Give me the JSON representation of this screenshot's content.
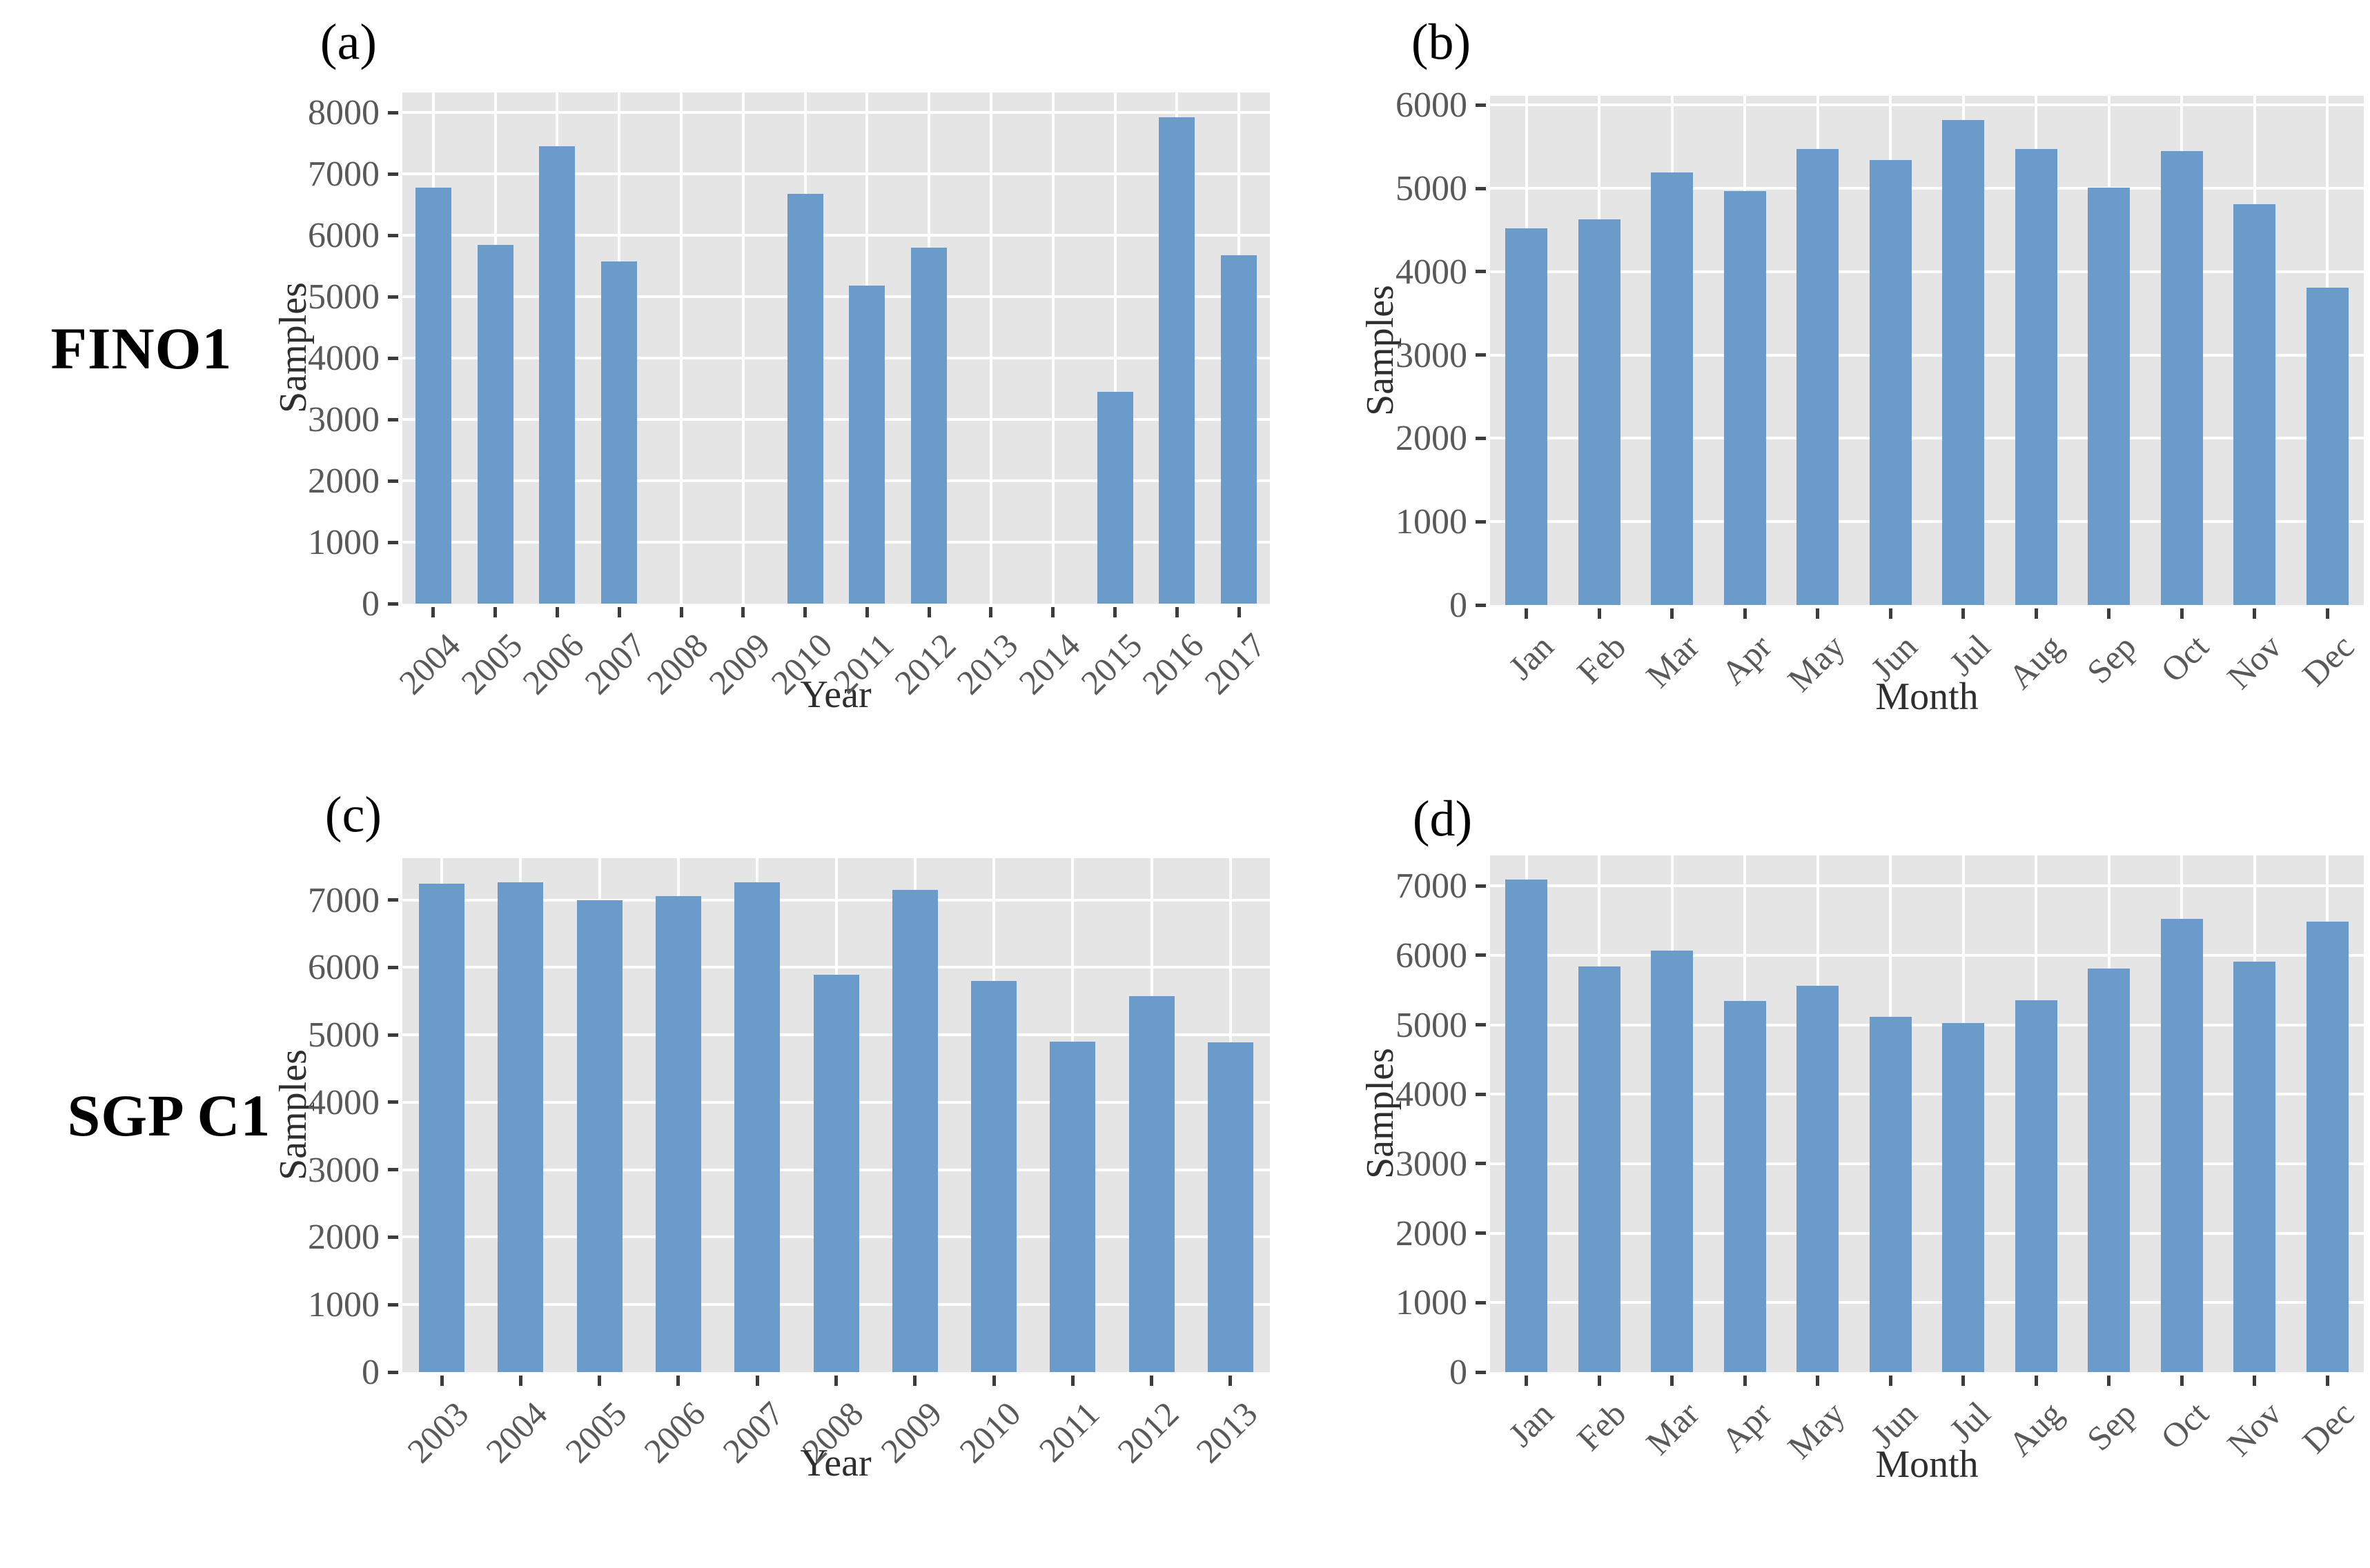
{
  "figure": {
    "row_labels": [
      {
        "text": "FINO1"
      },
      {
        "text": "SGP C1"
      }
    ],
    "style": {
      "bar_color": "#6A9BCB",
      "panel_background": "#E5E5E5",
      "grid_color": "#FFFFFF",
      "tick_color": "#3C3C3C",
      "tick_label_color": "#595959",
      "axis_title_color": "#2E2E2E",
      "caption_color": "#000000"
    }
  },
  "chart_data": [
    {
      "key": "a",
      "caption": "(a)",
      "row_label": "FINO1",
      "type": "bar",
      "title": "",
      "xlabel": "Year",
      "ylabel": "Samples",
      "categories": [
        "2004",
        "2005",
        "2006",
        "2007",
        "2008",
        "2009",
        "2010",
        "2011",
        "2012",
        "2013",
        "2014",
        "2015",
        "2016",
        "2017"
      ],
      "values": [
        6780,
        5850,
        7450,
        5580,
        0,
        0,
        6680,
        5180,
        5800,
        0,
        0,
        3450,
        7930,
        5680
      ],
      "yticks": [
        0,
        1000,
        2000,
        3000,
        4000,
        5000,
        6000,
        7000,
        8000
      ],
      "ylim": [
        0,
        8330
      ],
      "grid": "major-only",
      "legend": "none"
    },
    {
      "key": "b",
      "caption": "(b)",
      "row_label": "FINO1",
      "type": "bar",
      "title": "",
      "xlabel": "Month",
      "ylabel": "Samples",
      "categories": [
        "Jan",
        "Feb",
        "Mar",
        "Apr",
        "May",
        "Jun",
        "Jul",
        "Aug",
        "Sep",
        "Oct",
        "Nov",
        "Dec"
      ],
      "values": [
        4520,
        4630,
        5190,
        4970,
        5470,
        5340,
        5820,
        5470,
        5010,
        5450,
        4810,
        3810
      ],
      "yticks": [
        0,
        1000,
        2000,
        3000,
        4000,
        5000,
        6000
      ],
      "ylim": [
        0,
        6110
      ],
      "grid": "major-only",
      "legend": "none"
    },
    {
      "key": "c",
      "caption": "(c)",
      "row_label": "SGP C1",
      "type": "bar",
      "title": "",
      "xlabel": "Year",
      "ylabel": "Samples",
      "categories": [
        "2003",
        "2004",
        "2005",
        "2006",
        "2007",
        "2008",
        "2009",
        "2010",
        "2011",
        "2012",
        "2013"
      ],
      "values": [
        7240,
        7260,
        7000,
        7060,
        7260,
        5890,
        7150,
        5800,
        4900,
        5570,
        4890
      ],
      "yticks": [
        0,
        1000,
        2000,
        3000,
        4000,
        5000,
        6000,
        7000
      ],
      "ylim": [
        0,
        7620
      ],
      "grid": "major-only",
      "legend": "none"
    },
    {
      "key": "d",
      "caption": "(d)",
      "row_label": "SGP C1",
      "type": "bar",
      "title": "",
      "xlabel": "Month",
      "ylabel": "Samples",
      "categories": [
        "Jan",
        "Feb",
        "Mar",
        "Apr",
        "May",
        "Jun",
        "Jul",
        "Aug",
        "Sep",
        "Oct",
        "Nov",
        "Dec"
      ],
      "values": [
        7090,
        5840,
        6070,
        5340,
        5560,
        5120,
        5030,
        5350,
        5810,
        6530,
        5910,
        6490
      ],
      "yticks": [
        0,
        1000,
        2000,
        3000,
        4000,
        5000,
        6000,
        7000
      ],
      "ylim": [
        0,
        7440
      ],
      "grid": "major-only",
      "legend": "none"
    }
  ]
}
